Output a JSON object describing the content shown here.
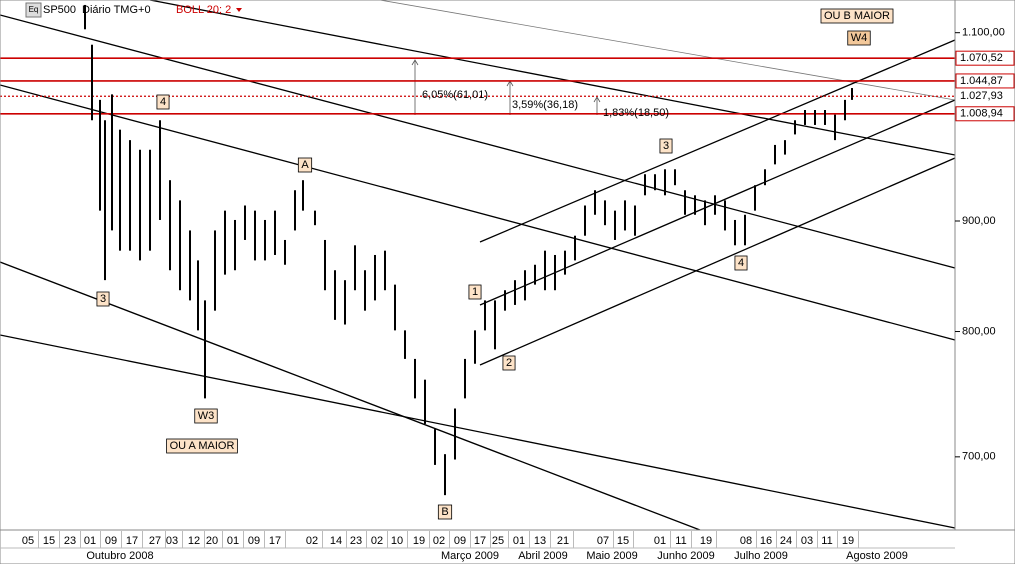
{
  "header": {
    "symbol": "SP500",
    "period": "Diário TMG+0",
    "indicator": "BOLL 20; 2"
  },
  "chart_data": {
    "type": "ohlc",
    "x": [
      85,
      92,
      100,
      105,
      112,
      120,
      130,
      140,
      150,
      160,
      170,
      180,
      190,
      198,
      205,
      215,
      225,
      235,
      245,
      255,
      265,
      275,
      285,
      295,
      303,
      315,
      325,
      335,
      345,
      355,
      365,
      375,
      385,
      395,
      405,
      415,
      425,
      435,
      445,
      455,
      465,
      475,
      485,
      495,
      505,
      515,
      525,
      535,
      545,
      555,
      565,
      575,
      585,
      595,
      605,
      615,
      625,
      635,
      645,
      655,
      665,
      675,
      685,
      695,
      705,
      715,
      725,
      735,
      745,
      755,
      765,
      775,
      785,
      795,
      805,
      815,
      825,
      835,
      845,
      852
    ],
    "high": [
      1133,
      1086,
      1024,
      1002,
      1030,
      992,
      981,
      971,
      971,
      1002,
      940,
      920,
      891,
      863,
      827,
      891,
      910,
      901,
      915,
      910,
      901,
      910,
      882,
      930,
      940,
      910,
      882,
      854,
      845,
      877,
      854,
      868,
      872,
      841,
      801,
      777,
      760,
      721,
      702,
      737,
      777,
      801,
      827,
      827,
      836,
      845,
      854,
      859,
      872,
      868,
      872,
      886,
      915,
      930,
      920,
      910,
      920,
      915,
      946,
      946,
      951,
      951,
      930,
      925,
      920,
      925,
      920,
      901,
      906,
      935,
      951,
      976,
      981,
      1002,
      1013,
      1013,
      1013,
      1008,
      1024,
      1037
    ],
    "low": [
      1104,
      1002,
      910,
      845,
      891,
      872,
      872,
      863,
      872,
      901,
      854,
      836,
      827,
      801,
      745,
      818,
      850,
      854,
      882,
      863,
      863,
      868,
      859,
      891,
      910,
      896,
      836,
      810,
      806,
      836,
      818,
      827,
      836,
      801,
      777,
      745,
      725,
      694,
      672,
      698,
      745,
      773,
      801,
      785,
      818,
      823,
      827,
      841,
      836,
      836,
      850,
      863,
      886,
      906,
      896,
      882,
      891,
      886,
      925,
      930,
      925,
      935,
      906,
      906,
      896,
      906,
      891,
      877,
      877,
      910,
      935,
      956,
      966,
      987,
      997,
      997,
      997,
      981,
      1002,
      1024
    ],
    "color": "#000000",
    "xlim": [
      0,
      955
    ],
    "ylim": [
      647.5,
      1139
    ],
    "log_scale": true,
    "yticks": [
      {
        "value": 700,
        "label": "700,00"
      },
      {
        "value": 800,
        "label": "800,00"
      },
      {
        "value": 900,
        "label": "900,00"
      },
      {
        "value": 1100,
        "label": "1.100,00"
      }
    ],
    "xticks": [
      {
        "value": 28,
        "label": "05"
      },
      {
        "value": 49,
        "label": "15"
      },
      {
        "value": 70,
        "label": "23"
      },
      {
        "value": 90,
        "label": "01"
      },
      {
        "value": 111,
        "label": "09"
      },
      {
        "value": 132,
        "label": "17"
      },
      {
        "value": 155,
        "label": "27"
      },
      {
        "value": 172,
        "label": "03"
      },
      {
        "value": 194,
        "label": "12"
      },
      {
        "value": 212,
        "label": "20"
      },
      {
        "value": 233,
        "label": "01"
      },
      {
        "value": 254,
        "label": "09"
      },
      {
        "value": 275,
        "label": "17"
      },
      {
        "value": 312,
        "label": "02"
      },
      {
        "value": 336,
        "label": "14"
      },
      {
        "value": 356,
        "label": "23"
      },
      {
        "value": 377,
        "label": "02"
      },
      {
        "value": 397,
        "label": "10"
      },
      {
        "value": 419,
        "label": "19"
      },
      {
        "value": 439,
        "label": "02"
      },
      {
        "value": 460,
        "label": "09"
      },
      {
        "value": 480,
        "label": "17"
      },
      {
        "value": 498,
        "label": "25"
      },
      {
        "value": 519,
        "label": "01"
      },
      {
        "value": 540,
        "label": "13"
      },
      {
        "value": 563,
        "label": "21"
      },
      {
        "value": 603,
        "label": "07"
      },
      {
        "value": 623,
        "label": "15"
      },
      {
        "value": 660,
        "label": "01"
      },
      {
        "value": 681,
        "label": "11"
      },
      {
        "value": 706,
        "label": "19"
      },
      {
        "value": 746,
        "label": "08"
      },
      {
        "value": 766,
        "label": "16"
      },
      {
        "value": 786,
        "label": "24"
      },
      {
        "value": 807,
        "label": "03"
      },
      {
        "value": 827,
        "label": "11"
      },
      {
        "value": 848,
        "label": "19"
      }
    ],
    "month_ticks": [
      {
        "value": 120,
        "label": "Outubro 2008"
      },
      {
        "value": 470,
        "label": "Março 2009"
      },
      {
        "value": 543,
        "label": "Abril 2009"
      },
      {
        "value": 612,
        "label": "Maio 2009"
      },
      {
        "value": 686,
        "label": "Junho 2009"
      },
      {
        "value": 761,
        "label": "Julho 2009"
      },
      {
        "value": 877,
        "label": "Agosto 2009"
      }
    ],
    "levels": [
      {
        "value": 1070.52,
        "label": "1.070,52",
        "style": "solid",
        "color": "#cc0000"
      },
      {
        "value": 1044.87,
        "label": "1.044,87",
        "style": "solid",
        "color": "#cc0000"
      },
      {
        "value": 1027.93,
        "label": "1.027,93",
        "style": "dotted",
        "color": "#cc0000"
      },
      {
        "value": 1008.94,
        "label": "1.008,94",
        "style": "solid",
        "color": "#cc0000"
      }
    ],
    "annotations": [
      "3",
      "4",
      "A",
      "W3",
      "OU A MAIOR",
      "B",
      "1",
      "2",
      "3",
      "4",
      "W4",
      "OU B MAIOR",
      "6,05%(61,01)",
      "3,59%(36,18)",
      "1,83%(18,50)"
    ]
  }
}
